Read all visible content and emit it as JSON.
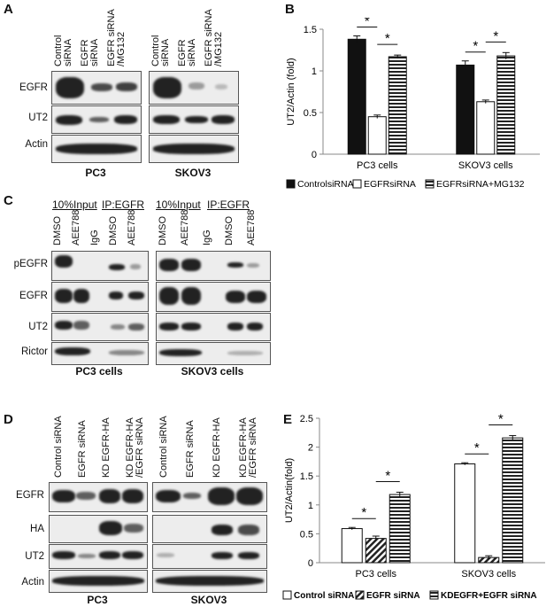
{
  "panels": {
    "A": {
      "label": "A",
      "lanes_left": [
        "Control\nsiRNA",
        "EGFR\nsiRNA",
        "EGFR siRNA\n/MG132"
      ],
      "lanes_right": [
        "Control\nsiRNA",
        "EGFR\nsiRNA",
        "EGFR siRNA\n/MG132"
      ],
      "rows": [
        "EGFR",
        "UT2",
        "Actin"
      ],
      "caption_left": "PC3",
      "caption_right": "SKOV3"
    },
    "C": {
      "label": "C",
      "input_header": "10%Input",
      "ip_header": "IP:EGFR",
      "lanes": [
        "DMSO",
        "AEE788",
        "IgG",
        "DMSO",
        "AEE788"
      ],
      "rows": [
        "pEGFR",
        "EGFR",
        "UT2",
        "Rictor"
      ],
      "caption_left": "PC3 cells",
      "caption_right": "SKOV3 cells"
    },
    "D": {
      "label": "D",
      "lanes": [
        "Control siRNA",
        "EGFR siRNA",
        "KD EGFR-HA",
        "KD EGFR-HA\n/EGFR siRNA"
      ],
      "rows": [
        "EGFR",
        "HA",
        "UT2",
        "Actin"
      ],
      "caption_left": "PC3",
      "caption_right": "SKOV3"
    }
  },
  "chart_data": [
    {
      "panel": "B",
      "type": "bar",
      "categories": [
        "PC3 cells",
        "SKOV3 cells"
      ],
      "series": [
        {
          "name": "ControlsiRNA",
          "values": [
            1.38,
            1.07
          ],
          "errors": [
            0.04,
            0.05
          ],
          "pattern": "solid-black"
        },
        {
          "name": "EGFRsiRNA",
          "values": [
            0.45,
            0.63
          ],
          "errors": [
            0.02,
            0.02
          ],
          "pattern": "white"
        },
        {
          "name": "EGFRsiRNA+MG132",
          "values": [
            1.17,
            1.18
          ],
          "errors": [
            0.02,
            0.04
          ],
          "pattern": "horizontal-stripes"
        }
      ],
      "ylabel": "UT2/Actin (fold)",
      "ylim": [
        0,
        1.5
      ],
      "yticks": [
        "0",
        "0.5",
        "1",
        "1.5"
      ],
      "significance": [
        "*",
        "*",
        "*",
        "*"
      ],
      "legend_position": "bottom"
    },
    {
      "panel": "E",
      "type": "bar",
      "categories": [
        "PC3 cells",
        "SKOV3 cells"
      ],
      "series": [
        {
          "name": "Control siRNA",
          "values": [
            0.59,
            1.71
          ],
          "errors": [
            0.02,
            0.02
          ],
          "pattern": "white"
        },
        {
          "name": "EGFR siRNA",
          "values": [
            0.42,
            0.09
          ],
          "errors": [
            0.04,
            0.03
          ],
          "pattern": "diagonal-stripes"
        },
        {
          "name": "KDEGFR+EGFR siRNA",
          "values": [
            1.18,
            2.16
          ],
          "errors": [
            0.04,
            0.04
          ],
          "pattern": "horizontal-stripes"
        }
      ],
      "ylabel": "UT2/Actin(fold)",
      "ylim": [
        0,
        2.5
      ],
      "yticks": [
        "0",
        "0.5",
        "1",
        "1.5",
        "2",
        "2.5"
      ],
      "significance": [
        "*",
        "*",
        "*",
        "*"
      ],
      "legend_position": "bottom"
    }
  ]
}
